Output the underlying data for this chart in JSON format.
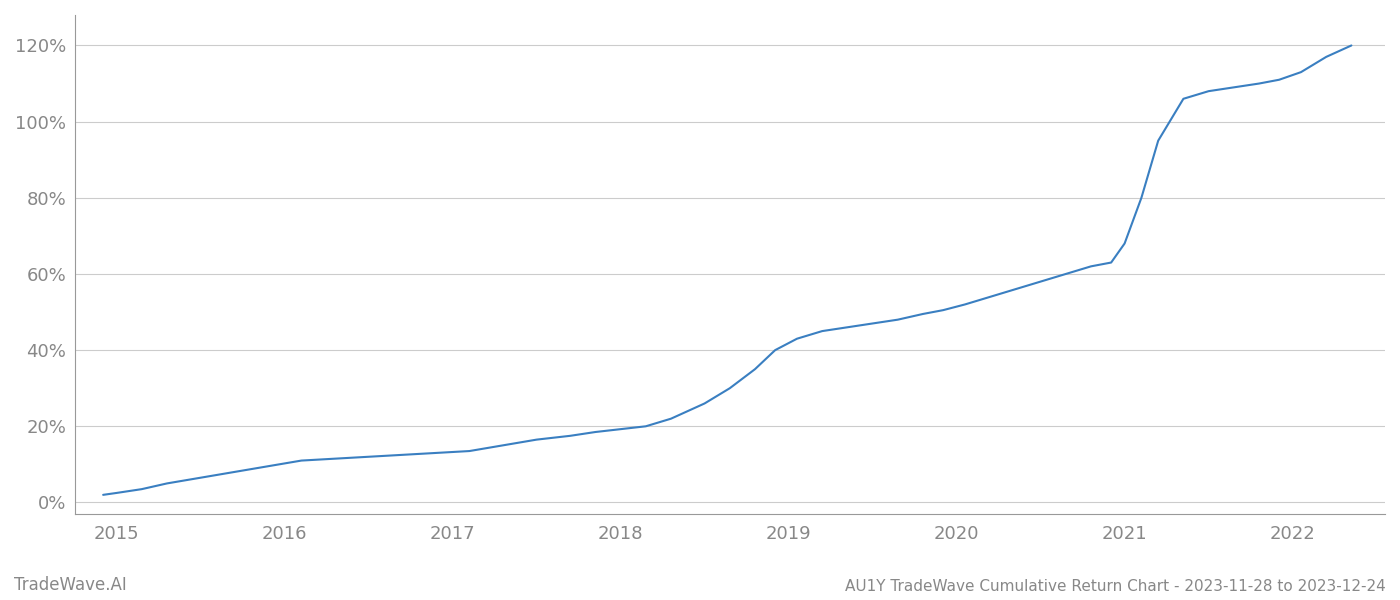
{
  "title": "AU1Y TradeWave Cumulative Return Chart - 2023-11-28 to 2023-12-24",
  "watermark": "TradeWave.AI",
  "line_color": "#3a7fc1",
  "background_color": "#ffffff",
  "grid_color": "#cccccc",
  "x_years": [
    2015,
    2016,
    2017,
    2018,
    2019,
    2020,
    2021,
    2022
  ],
  "x_data": [
    2014.92,
    2015.0,
    2015.15,
    2015.3,
    2015.5,
    2015.7,
    2015.9,
    2016.1,
    2016.3,
    2016.5,
    2016.7,
    2016.9,
    2017.1,
    2017.3,
    2017.5,
    2017.7,
    2017.85,
    2017.95,
    2018.05,
    2018.15,
    2018.3,
    2018.5,
    2018.65,
    2018.8,
    2018.92,
    2019.05,
    2019.2,
    2019.35,
    2019.5,
    2019.65,
    2019.8,
    2019.92,
    2020.05,
    2020.2,
    2020.35,
    2020.5,
    2020.65,
    2020.8,
    2020.92,
    2021.0,
    2021.1,
    2021.2,
    2021.35,
    2021.5,
    2021.65,
    2021.8,
    2021.92,
    2022.05,
    2022.2,
    2022.35
  ],
  "y_data": [
    2,
    2.5,
    3.5,
    5,
    6.5,
    8,
    9.5,
    11,
    11.5,
    12,
    12.5,
    13,
    13.5,
    15,
    16.5,
    17.5,
    18.5,
    19,
    19.5,
    20,
    22,
    26,
    30,
    35,
    40,
    43,
    45,
    46,
    47,
    48,
    49.5,
    50.5,
    52,
    54,
    56,
    58,
    60,
    62,
    63,
    68,
    80,
    95,
    106,
    108,
    109,
    110,
    111,
    113,
    117,
    120
  ],
  "yticks": [
    0,
    20,
    40,
    60,
    80,
    100,
    120
  ],
  "ylim": [
    -3,
    128
  ],
  "xlim": [
    2014.75,
    2022.55
  ],
  "title_fontsize": 11,
  "tick_fontsize": 13,
  "watermark_fontsize": 12,
  "spine_color": "#999999"
}
